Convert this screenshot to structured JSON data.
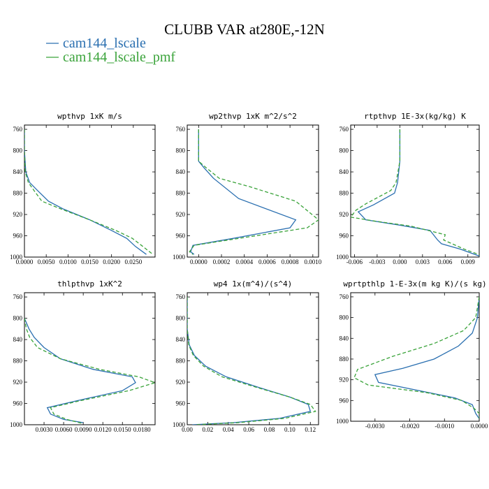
{
  "figure": {
    "title": "CLUBB VAR at280E,-12N",
    "legend": [
      {
        "label": "cam144_lscale",
        "color": "#2a6fb0",
        "dash": "solid"
      },
      {
        "label": "cam144_lscale_pmf",
        "color": "#3aa33a",
        "dash": "dashed"
      }
    ]
  },
  "chart_data": [
    {
      "type": "line",
      "title": "wpthvp  1xK m/s",
      "xlim": [
        0,
        0.03
      ],
      "xticks": [
        0,
        0.005,
        0.01,
        0.015,
        0.02,
        0.025
      ],
      "xtick_labels": [
        "0.0000",
        "0.0050",
        "0.0100",
        "0.0150",
        "0.0200",
        "0.0250"
      ],
      "ylim": [
        1000,
        752
      ],
      "yticks": [
        760,
        800,
        840,
        880,
        920,
        960,
        1000
      ],
      "ytick_labels": [
        "760",
        "800",
        "840",
        "880",
        "920",
        "960",
        "1000"
      ],
      "series": [
        {
          "name": "cam144_lscale",
          "color": "#2a6fb0",
          "points": [
            [
              0,
              760
            ],
            [
              0,
              800
            ],
            [
              0.0003,
              840
            ],
            [
              0.0012,
              860
            ],
            [
              0.003,
              875
            ],
            [
              0.0055,
              895
            ],
            [
              0.009,
              910
            ],
            [
              0.015,
              930
            ],
            [
              0.02,
              950
            ],
            [
              0.0235,
              965
            ],
            [
              0.0255,
              980
            ],
            [
              0.028,
              995
            ]
          ]
        },
        {
          "name": "cam144_lscale_pmf",
          "color": "#3aa33a",
          "points": [
            [
              0,
              760
            ],
            [
              0,
              800
            ],
            [
              0.0002,
              840
            ],
            [
              0.0009,
              860
            ],
            [
              0.0022,
              875
            ],
            [
              0.004,
              895
            ],
            [
              0.0085,
              910
            ],
            [
              0.015,
              930
            ],
            [
              0.021,
              950
            ],
            [
              0.0248,
              965
            ],
            [
              0.0272,
              980
            ],
            [
              0.0295,
              995
            ]
          ]
        }
      ]
    },
    {
      "type": "line",
      "title": "wp2thvp  1xK m^2/s^2",
      "xlim": [
        -0.0001,
        0.00105
      ],
      "xticks": [
        0,
        0.0002,
        0.0004,
        0.0006,
        0.0008,
        0.001
      ],
      "xtick_labels": [
        "0.0000",
        "0.0002",
        "0.0004",
        "0.0006",
        "0.0008",
        "0.0010"
      ],
      "ylim": [
        1000,
        752
      ],
      "yticks": [
        760,
        800,
        840,
        880,
        920,
        960,
        1000
      ],
      "ytick_labels": [
        "760",
        "800",
        "840",
        "880",
        "920",
        "960",
        "1000"
      ],
      "series": [
        {
          "name": "cam144_lscale",
          "color": "#2a6fb0",
          "points": [
            [
              0,
              760
            ],
            [
              0,
              820
            ],
            [
              5e-05,
              833
            ],
            [
              0.00013,
              852
            ],
            [
              0.00035,
              890
            ],
            [
              0.00085,
              930
            ],
            [
              0.0008,
              945
            ],
            [
              0.0003,
              965
            ],
            [
              -5e-05,
              978
            ],
            [
              -7e-05,
              990
            ],
            [
              -4e-05,
              995
            ]
          ]
        },
        {
          "name": "cam144_lscale_pmf",
          "color": "#3aa33a",
          "points": [
            [
              0,
              760
            ],
            [
              0,
              820
            ],
            [
              7e-05,
              833
            ],
            [
              0.00018,
              852
            ],
            [
              0.00045,
              868
            ],
            [
              0.00085,
              895
            ],
            [
              0.00105,
              930
            ],
            [
              0.00095,
              945
            ],
            [
              0.00035,
              965
            ],
            [
              -4e-05,
              978
            ],
            [
              -8e-05,
              990
            ],
            [
              -5e-05,
              995
            ]
          ]
        }
      ]
    },
    {
      "type": "line",
      "title": "rtpthvp  1E-3x(kg/kg) K",
      "xlim": [
        -0.0065,
        0.0105
      ],
      "xticks": [
        -0.006,
        -0.003,
        0,
        0.003,
        0.006,
        0.009
      ],
      "xtick_labels": [
        "-0.006",
        "-0.003",
        "0.000",
        "0.003",
        "0.006",
        "0.009"
      ],
      "ylim": [
        1000,
        752
      ],
      "yticks": [
        760,
        800,
        840,
        880,
        920,
        960,
        1000
      ],
      "ytick_labels": [
        "760",
        "800",
        "840",
        "880",
        "920",
        "960",
        "1000"
      ],
      "series": [
        {
          "name": "cam144_lscale",
          "color": "#2a6fb0",
          "points": [
            [
              0,
              760
            ],
            [
              0,
              820
            ],
            [
              -0.0003,
              860
            ],
            [
              -0.0007,
              880
            ],
            [
              -0.0035,
              902
            ],
            [
              -0.0055,
              915
            ],
            [
              -0.0045,
              930
            ],
            [
              0,
              940
            ],
            [
              0.004,
              950
            ],
            [
              0.005,
              968
            ],
            [
              0.0055,
              975
            ],
            [
              0.008,
              985
            ],
            [
              0.0105,
              998
            ]
          ]
        },
        {
          "name": "cam144_lscale_pmf",
          "color": "#3aa33a",
          "points": [
            [
              0,
              760
            ],
            [
              0,
              820
            ],
            [
              -0.0005,
              860
            ],
            [
              -0.0012,
              875
            ],
            [
              -0.0045,
              900
            ],
            [
              -0.0058,
              912
            ],
            [
              -0.0065,
              925
            ],
            [
              -0.0035,
              932
            ],
            [
              0.0015,
              942
            ],
            [
              0.006,
              958
            ],
            [
              0.0058,
              968
            ],
            [
              0.0085,
              985
            ],
            [
              0.011,
              998
            ]
          ]
        }
      ]
    },
    {
      "type": "line",
      "title": "thlpthvp  1xK^2",
      "xlim": [
        0,
        0.02
      ],
      "xticks": [
        0.003,
        0.006,
        0.009,
        0.012,
        0.015,
        0.018
      ],
      "xtick_labels": [
        "0.0030",
        "0.0060",
        "0.0090",
        "0.0120",
        "0.0150",
        "0.0180"
      ],
      "ylim": [
        1000,
        752
      ],
      "yticks": [
        760,
        800,
        840,
        880,
        920,
        960,
        1000
      ],
      "ytick_labels": [
        "760",
        "800",
        "840",
        "880",
        "920",
        "960",
        "1000"
      ],
      "series": [
        {
          "name": "cam144_lscale",
          "color": "#2a6fb0",
          "points": [
            [
              0,
              800
            ],
            [
              0.0007,
              820
            ],
            [
              0.0015,
              836
            ],
            [
              0.003,
              855
            ],
            [
              0.0055,
              876
            ],
            [
              0.0105,
              896
            ],
            [
              0.0165,
              910
            ],
            [
              0.017,
              921
            ],
            [
              0.015,
              936
            ],
            [
              0.008,
              955
            ],
            [
              0.0035,
              968
            ],
            [
              0.004,
              980
            ],
            [
              0.006,
              990
            ],
            [
              0.009,
              996
            ]
          ]
        },
        {
          "name": "cam144_lscale_pmf",
          "color": "#3aa33a",
          "points": [
            [
              0,
              800
            ],
            [
              0.0003,
              820
            ],
            [
              0.0008,
              836
            ],
            [
              0.002,
              855
            ],
            [
              0.0055,
              876
            ],
            [
              0.0115,
              896
            ],
            [
              0.0175,
              910
            ],
            [
              0.02,
              921
            ],
            [
              0.016,
              936
            ],
            [
              0.0085,
              955
            ],
            [
              0.004,
              968
            ],
            [
              0.0045,
              980
            ],
            [
              0.0065,
              990
            ],
            [
              0.009,
              998
            ]
          ]
        }
      ]
    },
    {
      "type": "line",
      "title": "wp4  1x(m^4)/(s^4)",
      "xlim": [
        0,
        0.128
      ],
      "xticks": [
        0,
        0.02,
        0.04,
        0.06,
        0.08,
        0.1,
        0.12
      ],
      "xtick_labels": [
        "0.00",
        "0.02",
        "0.04",
        "0.06",
        "0.08",
        "0.10",
        "0.12"
      ],
      "ylim": [
        1000,
        752
      ],
      "yticks": [
        760,
        800,
        840,
        880,
        920,
        960,
        1000
      ],
      "ytick_labels": [
        "760",
        "800",
        "840",
        "880",
        "920",
        "960",
        "1000"
      ],
      "series": [
        {
          "name": "cam144_lscale",
          "color": "#2a6fb0",
          "points": [
            [
              0,
              760
            ],
            [
              0,
              820
            ],
            [
              0.002,
              850
            ],
            [
              0.007,
              870
            ],
            [
              0.018,
              890
            ],
            [
              0.038,
              910
            ],
            [
              0.07,
              930
            ],
            [
              0.1,
              948
            ],
            [
              0.118,
              962
            ],
            [
              0.12,
              975
            ],
            [
              0.09,
              988
            ],
            [
              0.045,
              996
            ],
            [
              0.005,
              1000
            ]
          ]
        },
        {
          "name": "cam144_lscale_pmf",
          "color": "#3aa33a",
          "points": [
            [
              0,
              760
            ],
            [
              0,
              820
            ],
            [
              0.0015,
              850
            ],
            [
              0.006,
              870
            ],
            [
              0.016,
              890
            ],
            [
              0.034,
              910
            ],
            [
              0.068,
              930
            ],
            [
              0.1,
              948
            ],
            [
              0.12,
              962
            ],
            [
              0.125,
              975
            ],
            [
              0.095,
              988
            ],
            [
              0.05,
              996
            ],
            [
              0.008,
              1000
            ]
          ]
        }
      ]
    },
    {
      "type": "line",
      "title": "wprtpthlp  1-E-3x(m kg K)/(s kg)",
      "xlim": [
        -0.0037,
        0
      ],
      "xticks": [
        -0.003,
        -0.002,
        -0.001,
        0
      ],
      "xtick_labels": [
        "-0.0030",
        "-0.0020",
        "-0.0010",
        "0.0000"
      ],
      "ylim": [
        1000,
        752
      ],
      "yticks": [
        760,
        800,
        840,
        880,
        920,
        960,
        1000
      ],
      "ytick_labels": [
        "760",
        "800",
        "840",
        "880",
        "920",
        "960",
        "1000"
      ],
      "series": [
        {
          "name": "cam144_lscale",
          "color": "#2a6fb0",
          "points": [
            [
              0,
              760
            ],
            [
              -5e-05,
              800
            ],
            [
              -0.0002,
              830
            ],
            [
              -0.0006,
              855
            ],
            [
              -0.0013,
              880
            ],
            [
              -0.0022,
              898
            ],
            [
              -0.003,
              910
            ],
            [
              -0.0029,
              925
            ],
            [
              -0.0018,
              940
            ],
            [
              -0.0007,
              955
            ],
            [
              -0.0002,
              968
            ],
            [
              -0.0001,
              985
            ],
            [
              0,
              995
            ]
          ]
        },
        {
          "name": "cam144_lscale_pmf",
          "color": "#3aa33a",
          "points": [
            [
              0,
              760
            ],
            [
              -0.0001,
              800
            ],
            [
              -0.00045,
              825
            ],
            [
              -0.0013,
              850
            ],
            [
              -0.0025,
              875
            ],
            [
              -0.0035,
              900
            ],
            [
              -0.0036,
              916
            ],
            [
              -0.0032,
              930
            ],
            [
              -0.0015,
              945
            ],
            [
              -0.0005,
              960
            ],
            [
              -0.00015,
              975
            ],
            [
              0,
              985
            ],
            [
              0,
              995
            ]
          ]
        }
      ]
    }
  ]
}
